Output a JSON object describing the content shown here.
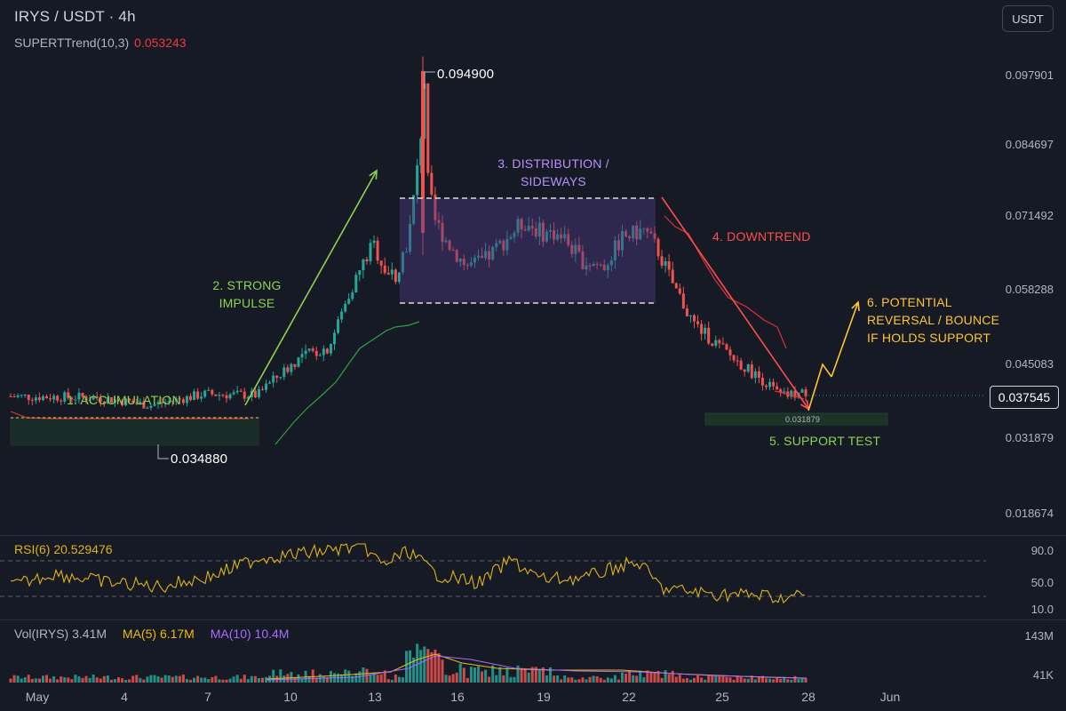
{
  "header": {
    "title": "IRYS / USDT · 4h",
    "indicator_name": "SUPERTTrend(10,3)",
    "indicator_value": "0.053243",
    "currency_button": "USDT"
  },
  "price_axis": {
    "labels": [
      "0.097901",
      "0.084697",
      "0.071492",
      "0.058288",
      "0.045083",
      "0.031879",
      "0.018674"
    ],
    "current_price": "0.037545"
  },
  "annotations": {
    "peak_high": "0.094900",
    "accumulation_low": "0.034880",
    "support_low": "0.031879",
    "phase1": "1. ACCUMULATION",
    "phase2_line1": "2. STRONG",
    "phase2_line2": "IMPULSE",
    "phase3_line1": "3. DISTRIBUTION /",
    "phase3_line2": "SIDEWAYS",
    "phase4": "4. DOWNTREND",
    "phase5": "5. SUPPORT TEST",
    "phase6_line1": "6. POTENTIAL",
    "phase6_line2": "REVERSAL / BOUNCE",
    "phase6_line3": "IF HOLDS SUPPORT"
  },
  "rsi": {
    "name": "RSI(6)",
    "value": "20.529476",
    "axis_labels": [
      "90.0",
      "50.0",
      "10.0"
    ]
  },
  "volume": {
    "name": "Vol(IRYS)",
    "value": "3.41M",
    "ma5_name": "MA(5)",
    "ma5_value": "6.17M",
    "ma10_name": "MA(10)",
    "ma10_value": "10.4M",
    "axis_labels": [
      "143M",
      "41K"
    ]
  },
  "time_axis": [
    "May",
    "4",
    "7",
    "10",
    "13",
    "16",
    "19",
    "22",
    "25",
    "28",
    "Jun"
  ],
  "colors": {
    "background": "#161a25",
    "up": "#26a69a",
    "down": "#ef5350",
    "supertrend_up": "#2ea043",
    "supertrend_down": "#e0303a",
    "annotation_green": "#8bd450",
    "annotation_purple": "#b690ff",
    "annotation_red": "#ff4d4d",
    "annotation_yellow": "#ffc52e",
    "rsi_line": "#e0b21a",
    "ma5": "#f0b90b",
    "ma10": "#a66bff"
  }
}
